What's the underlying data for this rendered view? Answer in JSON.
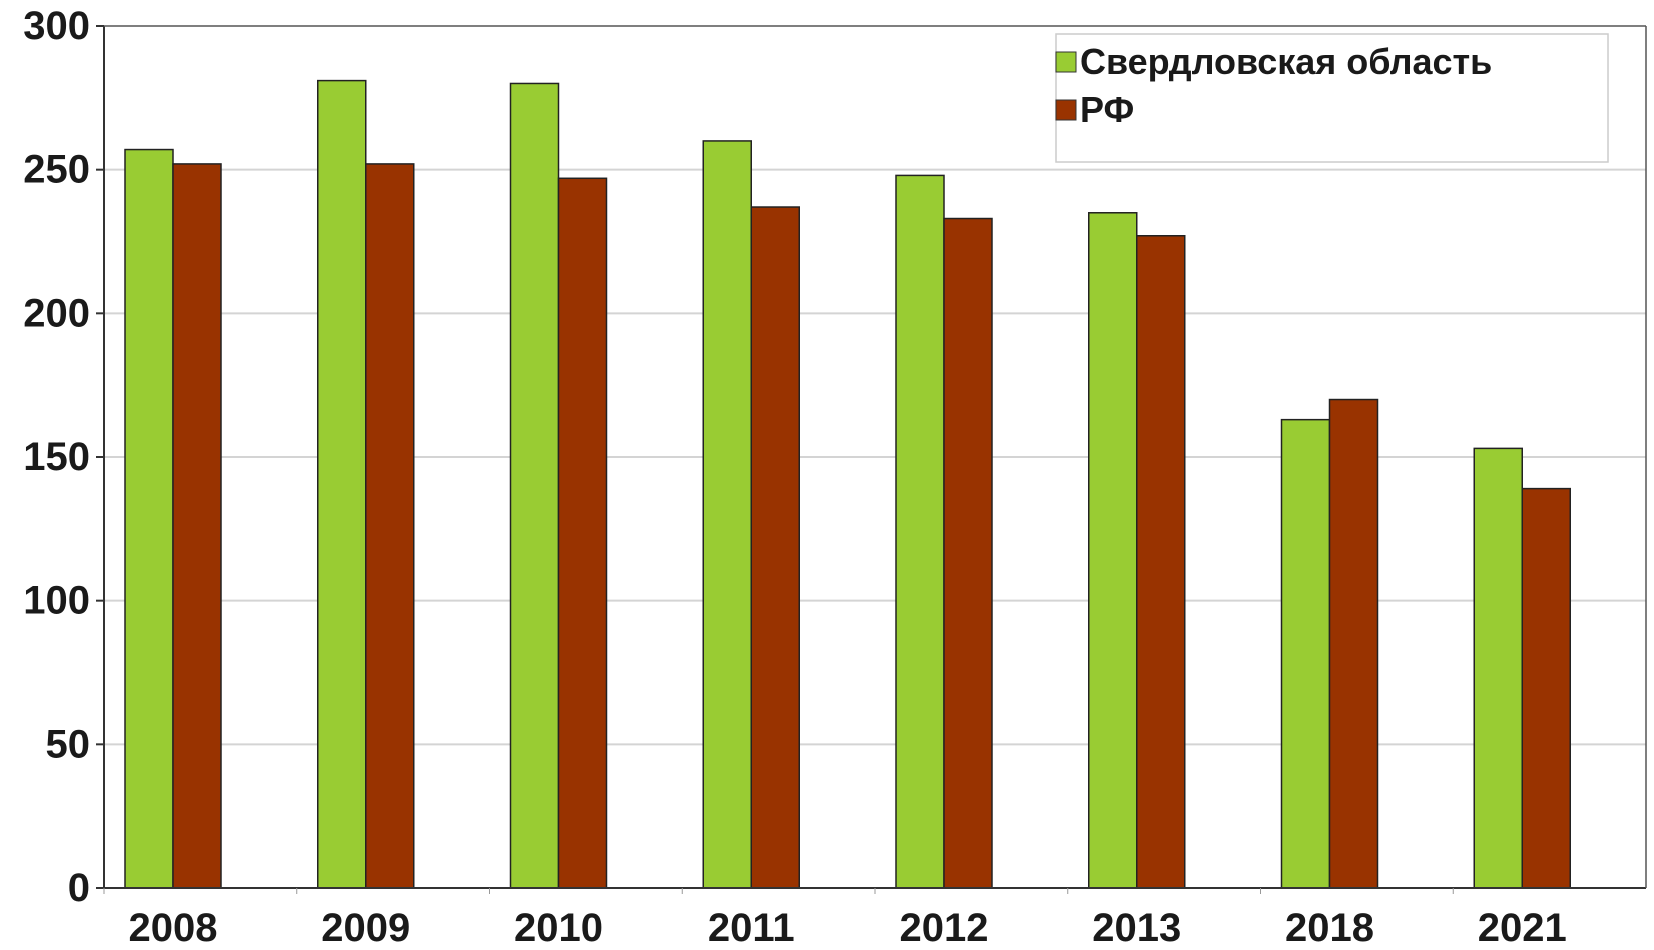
{
  "chart_data": {
    "type": "bar",
    "categories": [
      "2008",
      "2009",
      "2010",
      "2011",
      "2012",
      "2013",
      "2018",
      "2021"
    ],
    "series": [
      {
        "name": "Свердловская область",
        "color": "#99cc33",
        "values": [
          257,
          281,
          280,
          260,
          248,
          235,
          163,
          153
        ]
      },
      {
        "name": "РФ",
        "color": "#993300",
        "values": [
          252,
          252,
          247,
          237,
          233,
          227,
          170,
          139
        ]
      }
    ],
    "ylim": [
      0,
      300
    ],
    "yticks": [
      "0",
      "50",
      "100",
      "150",
      "200",
      "250",
      "300"
    ],
    "grid": true,
    "legend_position": "top-right",
    "title": "",
    "xlabel": "",
    "ylabel": ""
  }
}
